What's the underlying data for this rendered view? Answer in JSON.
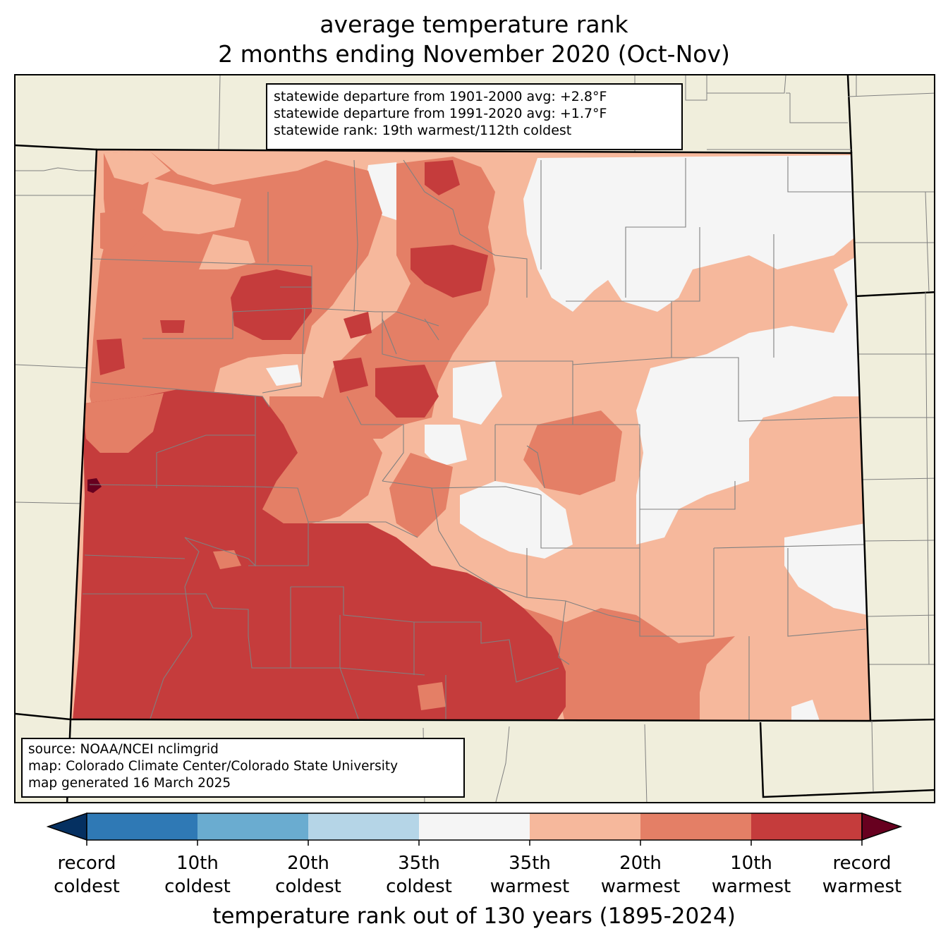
{
  "title": {
    "line1": "average temperature rank",
    "line2": "2 months ending November 2020 (Oct-Nov)"
  },
  "stats": {
    "line1": "statewide departure from 1901-2000 avg: +2.8°F",
    "line2": "statewide departure from 1991-2020 avg: +1.7°F",
    "line3": "statewide rank: 19th warmest/112th coldest"
  },
  "source": {
    "line1": "source: NOAA/NCEI nclimgrid",
    "line2": "map: Colorado Climate Center/Colorado State University",
    "line3": "map generated 16 March 2025"
  },
  "legend": {
    "title": "temperature rank out of 130 years (1895-2024)",
    "ticks": [
      {
        "line1": "record",
        "line2": "coldest"
      },
      {
        "line1": "10th",
        "line2": "coldest"
      },
      {
        "line1": "20th",
        "line2": "coldest"
      },
      {
        "line1": "35th",
        "line2": "coldest"
      },
      {
        "line1": "35th",
        "line2": "warmest"
      },
      {
        "line1": "20th",
        "line2": "warmest"
      },
      {
        "line1": "10th",
        "line2": "warmest"
      },
      {
        "line1": "record",
        "line2": "warmest"
      }
    ],
    "colors": {
      "record_coldest": "#053061",
      "coldest_10": "#2f79b5",
      "coldest_20": "#6aacd0",
      "coldest_35": "#b5d5e7",
      "near_normal": "#f5f5f5",
      "warmest_35": "#f6b89c",
      "warmest_20": "#e47f66",
      "warmest_10": "#c53c3c",
      "record_warmest": "#67001f"
    }
  },
  "map_colors": {
    "background": "#f0eedc",
    "state_border": "#000000",
    "county_lines": "#808080"
  }
}
